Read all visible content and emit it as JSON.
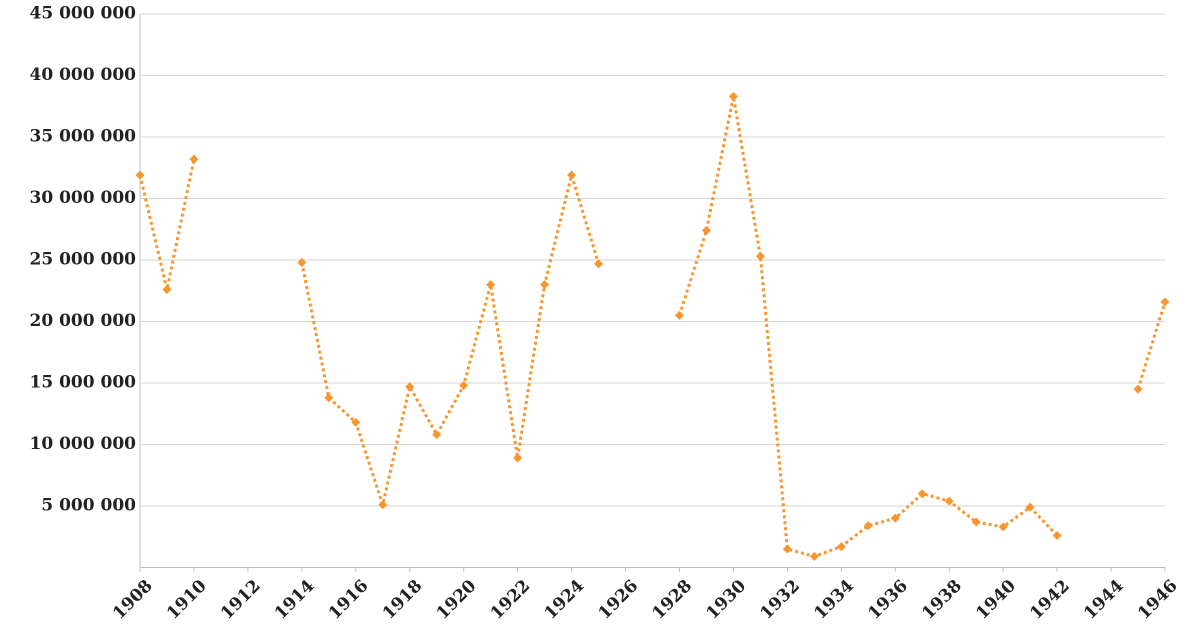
{
  "chart_data": {
    "type": "line",
    "x": [
      1908,
      1909,
      1910,
      1911,
      1912,
      1913,
      1914,
      1915,
      1916,
      1917,
      1918,
      1919,
      1920,
      1921,
      1922,
      1923,
      1924,
      1925,
      1926,
      1927,
      1928,
      1929,
      1930,
      1931,
      1932,
      1933,
      1934,
      1935,
      1936,
      1937,
      1938,
      1939,
      1940,
      1941,
      1942,
      1943,
      1944,
      1945,
      1946
    ],
    "series": [
      {
        "color": "#f7962f",
        "values": [
          31900000,
          22600000,
          33200000,
          null,
          null,
          null,
          24800000,
          13800000,
          11800000,
          5100000,
          14700000,
          10800000,
          14800000,
          23000000,
          8900000,
          23000000,
          31900000,
          24700000,
          null,
          null,
          20500000,
          27400000,
          38300000,
          25300000,
          1500000,
          900000,
          1700000,
          3400000,
          4000000,
          6000000,
          5400000,
          3700000,
          3300000,
          4900000,
          2600000,
          null,
          null,
          14500000,
          21600000
        ]
      }
    ],
    "xlim": [
      1908,
      1946
    ],
    "xticks": [
      1908,
      1910,
      1912,
      1914,
      1916,
      1918,
      1920,
      1922,
      1924,
      1926,
      1928,
      1930,
      1932,
      1934,
      1936,
      1938,
      1940,
      1942,
      1944,
      1946
    ],
    "ylim": [
      0,
      45000000
    ],
    "yticks": [
      {
        "value": 5000000,
        "label": "5 000 000"
      },
      {
        "value": 10000000,
        "label": "10 000 000"
      },
      {
        "value": 15000000,
        "label": "15 000 000"
      },
      {
        "value": 20000000,
        "label": "20 000 000"
      },
      {
        "value": 25000000,
        "label": "25 000 000"
      },
      {
        "value": 30000000,
        "label": "30 000 000"
      },
      {
        "value": 35000000,
        "label": "35 000 000"
      },
      {
        "value": 40000000,
        "label": "40 000 000"
      },
      {
        "value": 45000000,
        "label": "45 000 000"
      }
    ],
    "grid": true
  }
}
